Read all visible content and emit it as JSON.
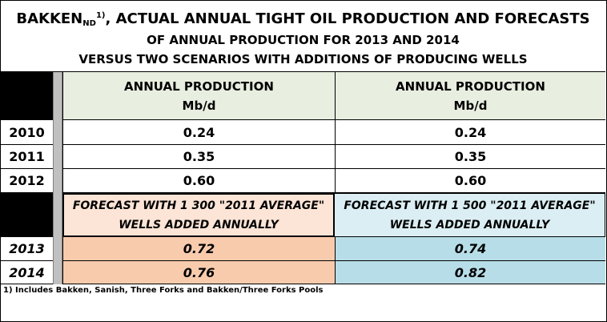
{
  "title": {
    "line1_main": "BAKKEN",
    "line1_sub": "ND",
    "line1_sup": "1)",
    "line1_rest": ", ACTUAL ANNUAL TIGHT OIL PRODUCTION AND FORECASTS",
    "line2": "OF ANNUAL PRODUCTION FOR 2013 AND 2014",
    "line3": "VERSUS TWO SCENARIOS WITH ADDITIONS OF PRODUCING WELLS"
  },
  "header": {
    "col1_line1": "ANNUAL PRODUCTION",
    "col1_line2": "Mb/d",
    "col2_line1": "ANNUAL PRODUCTION",
    "col2_line2": "Mb/d"
  },
  "actual_rows": [
    {
      "year": "2010",
      "v1": "0.24",
      "v2": "0.24"
    },
    {
      "year": "2011",
      "v1": "0.35",
      "v2": "0.35"
    },
    {
      "year": "2012",
      "v1": "0.60",
      "v2": "0.60"
    }
  ],
  "forecast_header": {
    "col1_line1": "FORECAST WITH 1 300  \"2011 AVERAGE\"",
    "col1_line2": "WELLS ADDED ANNUALLY",
    "col2_line1": "FORECAST WITH 1 500  \"2011 AVERAGE\"",
    "col2_line2": "WELLS ADDED ANNUALLY"
  },
  "forecast_rows": [
    {
      "year": "2013",
      "v1": "0.72",
      "v2": "0.74"
    },
    {
      "year": "2014",
      "v1": "0.76",
      "v2": "0.82"
    }
  ],
  "footnote": "1) Includes Bakken, Sanish, Three Forks and Bakken/Three Forks Pools",
  "colors": {
    "header_bg": "#e8eee0",
    "forecast1_header_bg": "#fce4d6",
    "forecast2_header_bg": "#dbeef4",
    "forecast1_values_bg": "#f8cbad",
    "forecast2_values_bg": "#b7dee8"
  }
}
